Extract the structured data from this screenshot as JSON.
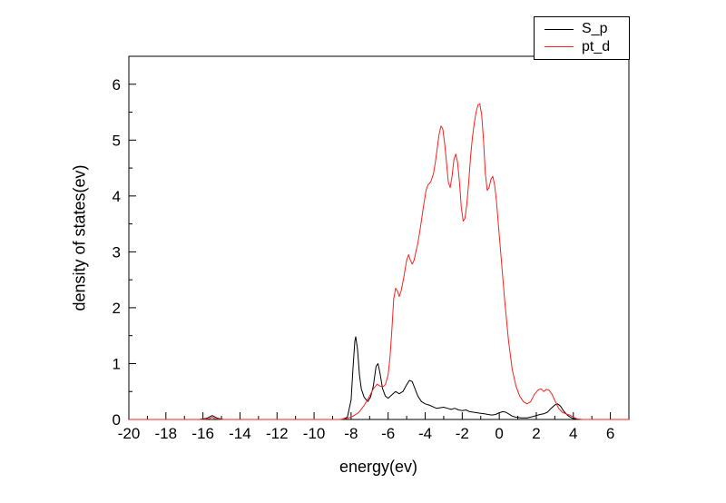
{
  "chart_data": {
    "type": "line",
    "title": "",
    "xlabel": "energy(ev)",
    "ylabel": "density of states(ev)",
    "xlim": [
      -20,
      7
    ],
    "ylim": [
      0,
      6.5
    ],
    "x_major_ticks": [
      -20,
      -18,
      -16,
      -14,
      -12,
      -10,
      -8,
      -6,
      -4,
      -2,
      0,
      2,
      4,
      6
    ],
    "x_minor_step": 1,
    "y_major_ticks": [
      0,
      1,
      2,
      3,
      4,
      5,
      6
    ],
    "y_minor_step": 0.5,
    "grid": false,
    "legend_position": "top-right",
    "frame": true,
    "axis_color": "#000000",
    "background_color": "#ffffff",
    "series": [
      {
        "name": "S_p",
        "color": "#000000",
        "points": [
          [
            -20,
            0
          ],
          [
            -16.2,
            0
          ],
          [
            -15.8,
            0.02
          ],
          [
            -15.5,
            0.07
          ],
          [
            -15.2,
            0.02
          ],
          [
            -14.9,
            0
          ],
          [
            -10,
            0
          ],
          [
            -8.5,
            0
          ],
          [
            -8.2,
            0.04
          ],
          [
            -8.0,
            0.35
          ],
          [
            -7.9,
            0.9
          ],
          [
            -7.8,
            1.4
          ],
          [
            -7.75,
            1.48
          ],
          [
            -7.65,
            1.25
          ],
          [
            -7.55,
            0.8
          ],
          [
            -7.45,
            0.55
          ],
          [
            -7.3,
            0.4
          ],
          [
            -7.1,
            0.32
          ],
          [
            -6.95,
            0.4
          ],
          [
            -6.8,
            0.6
          ],
          [
            -6.65,
            0.95
          ],
          [
            -6.55,
            1.0
          ],
          [
            -6.45,
            0.85
          ],
          [
            -6.3,
            0.55
          ],
          [
            -6.15,
            0.42
          ],
          [
            -6.0,
            0.38
          ],
          [
            -5.8,
            0.44
          ],
          [
            -5.6,
            0.5
          ],
          [
            -5.4,
            0.46
          ],
          [
            -5.2,
            0.5
          ],
          [
            -5.0,
            0.62
          ],
          [
            -4.85,
            0.7
          ],
          [
            -4.7,
            0.68
          ],
          [
            -4.55,
            0.55
          ],
          [
            -4.4,
            0.42
          ],
          [
            -4.2,
            0.32
          ],
          [
            -4.0,
            0.28
          ],
          [
            -3.8,
            0.26
          ],
          [
            -3.6,
            0.23
          ],
          [
            -3.4,
            0.2
          ],
          [
            -3.2,
            0.21
          ],
          [
            -3.0,
            0.22
          ],
          [
            -2.8,
            0.2
          ],
          [
            -2.6,
            0.18
          ],
          [
            -2.4,
            0.2
          ],
          [
            -2.2,
            0.17
          ],
          [
            -2.0,
            0.16
          ],
          [
            -1.8,
            0.17
          ],
          [
            -1.6,
            0.14
          ],
          [
            -1.4,
            0.13
          ],
          [
            -1.2,
            0.12
          ],
          [
            -1.0,
            0.11
          ],
          [
            -0.8,
            0.1
          ],
          [
            -0.6,
            0.09
          ],
          [
            -0.4,
            0.08
          ],
          [
            -0.2,
            0.09
          ],
          [
            0,
            0.12
          ],
          [
            0.2,
            0.14
          ],
          [
            0.35,
            0.13
          ],
          [
            0.5,
            0.1
          ],
          [
            0.7,
            0.06
          ],
          [
            0.9,
            0.04
          ],
          [
            1.2,
            0.03
          ],
          [
            1.5,
            0.03
          ],
          [
            1.8,
            0.05
          ],
          [
            2.0,
            0.07
          ],
          [
            2.2,
            0.09
          ],
          [
            2.4,
            0.1
          ],
          [
            2.6,
            0.13
          ],
          [
            2.8,
            0.2
          ],
          [
            3.0,
            0.26
          ],
          [
            3.15,
            0.28
          ],
          [
            3.3,
            0.24
          ],
          [
            3.5,
            0.14
          ],
          [
            3.7,
            0.07
          ],
          [
            3.9,
            0.03
          ],
          [
            4.1,
            0.01
          ],
          [
            4.3,
            0
          ],
          [
            7,
            0
          ]
        ]
      },
      {
        "name": "pt_d",
        "color": "#fb2020",
        "points": [
          [
            -20,
            0
          ],
          [
            -16,
            0
          ],
          [
            -15.7,
            0.01
          ],
          [
            -15.5,
            0.04
          ],
          [
            -15.3,
            0.01
          ],
          [
            -15,
            0
          ],
          [
            -8.6,
            0
          ],
          [
            -8.2,
            0.02
          ],
          [
            -7.9,
            0.06
          ],
          [
            -7.6,
            0.12
          ],
          [
            -7.3,
            0.25
          ],
          [
            -7.0,
            0.42
          ],
          [
            -6.8,
            0.55
          ],
          [
            -6.6,
            0.63
          ],
          [
            -6.45,
            0.6
          ],
          [
            -6.3,
            0.58
          ],
          [
            -6.15,
            0.62
          ],
          [
            -6.0,
            0.8
          ],
          [
            -5.9,
            1.1
          ],
          [
            -5.8,
            1.6
          ],
          [
            -5.7,
            2.15
          ],
          [
            -5.6,
            2.35
          ],
          [
            -5.5,
            2.3
          ],
          [
            -5.4,
            2.2
          ],
          [
            -5.3,
            2.3
          ],
          [
            -5.15,
            2.55
          ],
          [
            -5.0,
            2.85
          ],
          [
            -4.9,
            2.95
          ],
          [
            -4.8,
            2.85
          ],
          [
            -4.7,
            2.78
          ],
          [
            -4.6,
            2.85
          ],
          [
            -4.5,
            3.0
          ],
          [
            -4.4,
            3.15
          ],
          [
            -4.25,
            3.45
          ],
          [
            -4.1,
            3.8
          ],
          [
            -3.95,
            4.1
          ],
          [
            -3.85,
            4.2
          ],
          [
            -3.7,
            4.25
          ],
          [
            -3.55,
            4.4
          ],
          [
            -3.45,
            4.6
          ],
          [
            -3.35,
            4.85
          ],
          [
            -3.25,
            5.1
          ],
          [
            -3.15,
            5.25
          ],
          [
            -3.05,
            5.2
          ],
          [
            -2.95,
            4.95
          ],
          [
            -2.85,
            4.6
          ],
          [
            -2.75,
            4.25
          ],
          [
            -2.65,
            4.15
          ],
          [
            -2.55,
            4.35
          ],
          [
            -2.45,
            4.65
          ],
          [
            -2.35,
            4.75
          ],
          [
            -2.25,
            4.6
          ],
          [
            -2.15,
            4.25
          ],
          [
            -2.05,
            3.8
          ],
          [
            -1.95,
            3.55
          ],
          [
            -1.85,
            3.6
          ],
          [
            -1.75,
            3.85
          ],
          [
            -1.65,
            4.25
          ],
          [
            -1.55,
            4.7
          ],
          [
            -1.45,
            5.05
          ],
          [
            -1.35,
            5.3
          ],
          [
            -1.25,
            5.5
          ],
          [
            -1.15,
            5.63
          ],
          [
            -1.05,
            5.65
          ],
          [
            -0.95,
            5.45
          ],
          [
            -0.85,
            5.0
          ],
          [
            -0.75,
            4.4
          ],
          [
            -0.65,
            4.1
          ],
          [
            -0.55,
            4.15
          ],
          [
            -0.45,
            4.3
          ],
          [
            -0.35,
            4.35
          ],
          [
            -0.25,
            4.2
          ],
          [
            -0.15,
            3.9
          ],
          [
            -0.05,
            3.5
          ],
          [
            0.1,
            2.9
          ],
          [
            0.3,
            2.1
          ],
          [
            0.5,
            1.4
          ],
          [
            0.7,
            0.9
          ],
          [
            0.9,
            0.6
          ],
          [
            1.1,
            0.42
          ],
          [
            1.3,
            0.32
          ],
          [
            1.5,
            0.28
          ],
          [
            1.7,
            0.32
          ],
          [
            1.9,
            0.45
          ],
          [
            2.1,
            0.53
          ],
          [
            2.25,
            0.55
          ],
          [
            2.4,
            0.5
          ],
          [
            2.55,
            0.54
          ],
          [
            2.7,
            0.52
          ],
          [
            2.85,
            0.45
          ],
          [
            3.0,
            0.34
          ],
          [
            3.2,
            0.2
          ],
          [
            3.4,
            0.13
          ],
          [
            3.6,
            0.1
          ],
          [
            3.8,
            0.08
          ],
          [
            4.0,
            0.04
          ],
          [
            4.2,
            0.01
          ],
          [
            4.5,
            0
          ],
          [
            7,
            0
          ]
        ]
      }
    ]
  }
}
